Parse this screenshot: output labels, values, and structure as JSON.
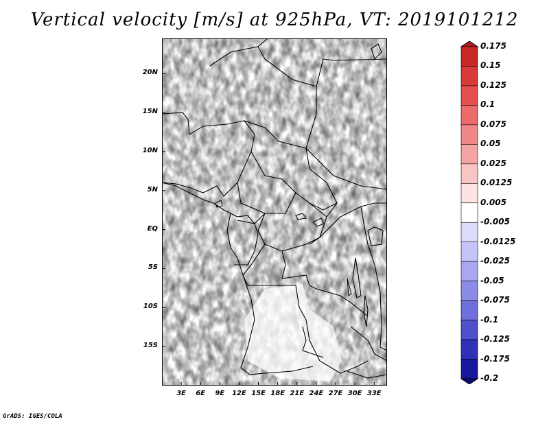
{
  "title": "Vertical velocity [m/s] at 925hPa, VT: 2019101212",
  "credit": "GrADS: IGES/COLA",
  "map": {
    "lat_labels": [
      "20N",
      "15N",
      "10N",
      "5N",
      "EQ",
      "5S",
      "10S",
      "15S"
    ],
    "lon_labels": [
      "3E",
      "6E",
      "9E",
      "12E",
      "15E",
      "18E",
      "21E",
      "24E",
      "27E",
      "30E",
      "33E"
    ],
    "lat_range": [
      -20,
      24.5
    ],
    "lon_range": [
      0,
      35
    ]
  },
  "colorbar": {
    "levels": [
      "0.175",
      "0.15",
      "0.125",
      "0.1",
      "0.075",
      "0.05",
      "0.025",
      "0.0125",
      "0.005",
      "-0.005",
      "-0.0125",
      "-0.025",
      "-0.05",
      "-0.075",
      "-0.1",
      "-0.125",
      "-0.175",
      "-0.2"
    ],
    "colors": [
      "#b01c1c",
      "#c82828",
      "#d83a3a",
      "#e45050",
      "#ec6a6a",
      "#f08888",
      "#f4a4a4",
      "#f8c4c4",
      "#fce4e4",
      "#ffffff",
      "#dcdcfc",
      "#c4c4f8",
      "#a8a8f0",
      "#8c8ce8",
      "#6e6edc",
      "#5050cc",
      "#3030b8",
      "#18189c",
      "#0a0a80"
    ]
  }
}
